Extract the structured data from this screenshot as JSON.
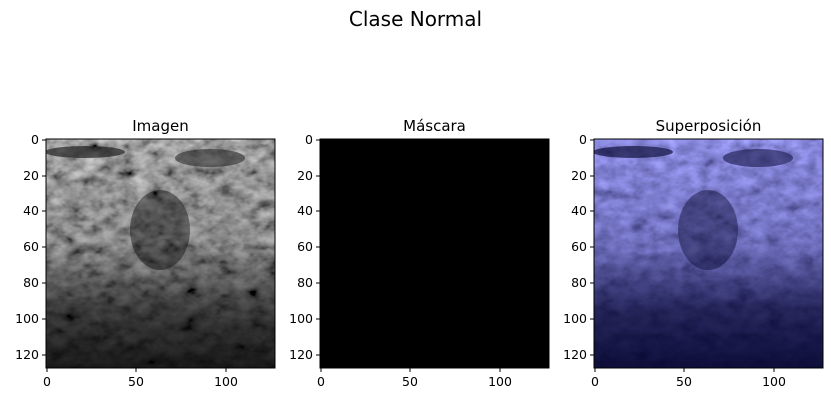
{
  "figure": {
    "suptitle": "Clase Normal"
  },
  "panels": [
    {
      "title": "Imagen",
      "kind": "grayscale-ultrasound",
      "x_ticks": [
        "0",
        "50",
        "100"
      ],
      "y_ticks": [
        "0",
        "20",
        "40",
        "60",
        "80",
        "100",
        "120"
      ]
    },
    {
      "title": "Máscara",
      "kind": "empty-mask",
      "x_ticks": [
        "0",
        "50",
        "100"
      ],
      "y_ticks": [
        "0",
        "20",
        "40",
        "60",
        "80",
        "100",
        "120"
      ]
    },
    {
      "title": "Superposición",
      "kind": "blue-overlay",
      "x_ticks": [
        "0",
        "50",
        "100"
      ],
      "y_ticks": [
        "0",
        "20",
        "40",
        "60",
        "80",
        "100",
        "120"
      ]
    }
  ],
  "colors": {
    "mask": "#000000",
    "overlay_tint": "#1a1a5a"
  }
}
